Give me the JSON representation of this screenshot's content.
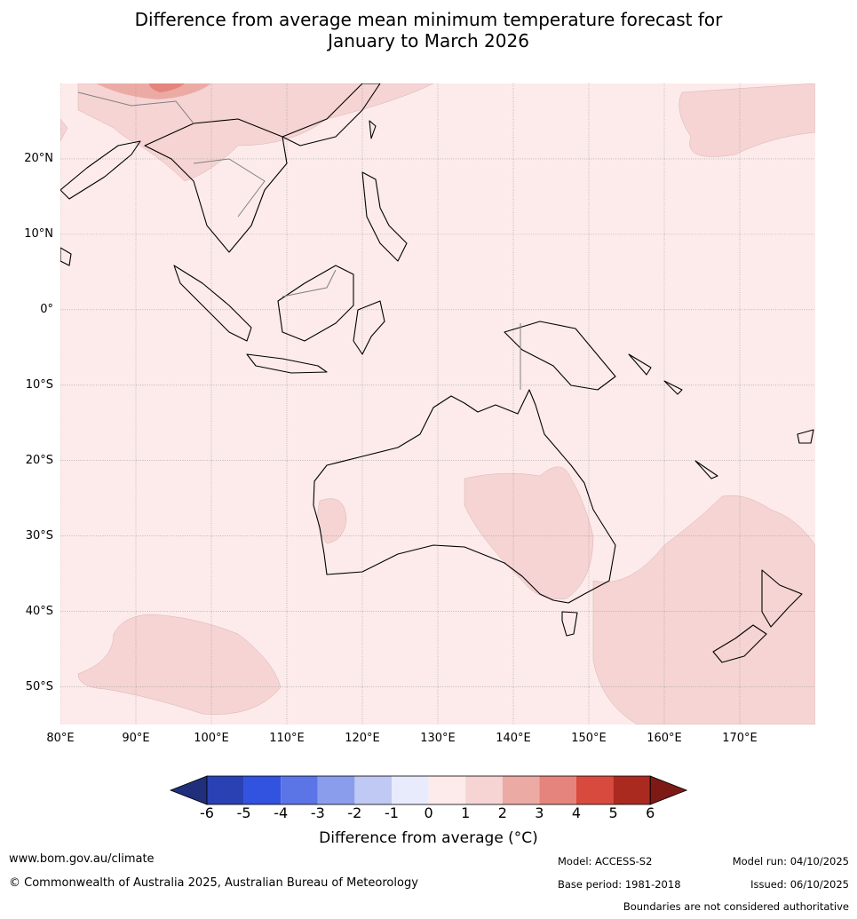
{
  "title_line1": "Difference from average mean minimum temperature forecast for",
  "title_line2": "January to March 2026",
  "map": {
    "lon_range": [
      80,
      180
    ],
    "lat_range": [
      -55,
      30
    ],
    "lat_ticks": [
      {
        "lat": 20,
        "label": "20°N"
      },
      {
        "lat": 10,
        "label": "10°N"
      },
      {
        "lat": 0,
        "label": "0°"
      },
      {
        "lat": -10,
        "label": "10°S"
      },
      {
        "lat": -20,
        "label": "20°S"
      },
      {
        "lat": -30,
        "label": "30°S"
      },
      {
        "lat": -40,
        "label": "40°S"
      },
      {
        "lat": -50,
        "label": "50°S"
      }
    ],
    "lon_ticks": [
      {
        "lon": 80,
        "label": "80°E"
      },
      {
        "lon": 90,
        "label": "90°E"
      },
      {
        "lon": 100,
        "label": "100°E"
      },
      {
        "lon": 110,
        "label": "110°E"
      },
      {
        "lon": 120,
        "label": "120°E"
      },
      {
        "lon": 130,
        "label": "130°E"
      },
      {
        "lon": 140,
        "label": "140°E"
      },
      {
        "lon": 150,
        "label": "150°E"
      },
      {
        "lon": 160,
        "label": "160°E"
      },
      {
        "lon": 170,
        "label": "170°E"
      }
    ],
    "background_color": "#fcebea"
  },
  "colorbar": {
    "label": "Difference from average (°C)",
    "ticks": [
      "-6",
      "-5",
      "-4",
      "-3",
      "-2",
      "-1",
      "0",
      "1",
      "2",
      "3",
      "4",
      "5",
      "6"
    ],
    "colors": [
      "#1f2f7c",
      "#2a41b4",
      "#3252e0",
      "#5b74e6",
      "#8a9ded",
      "#c0c8f4",
      "#e8ebfb",
      "#fcebea",
      "#f5d4d3",
      "#ecaaa5",
      "#e5847c",
      "#d84a3e",
      "#aa2a20",
      "#7d1a16"
    ]
  },
  "footer": {
    "url": "www.bom.gov.au/climate",
    "copyright": "© Commonwealth of Australia 2025, Australian Bureau of Meteorology",
    "model": "Model: ACCESS-S2",
    "base_period": "Base period: 1981-2018",
    "model_run": "Model run: 04/10/2025",
    "issued": "Issued: 06/10/2025",
    "disclaimer": "Boundaries are not considered authoritative"
  }
}
